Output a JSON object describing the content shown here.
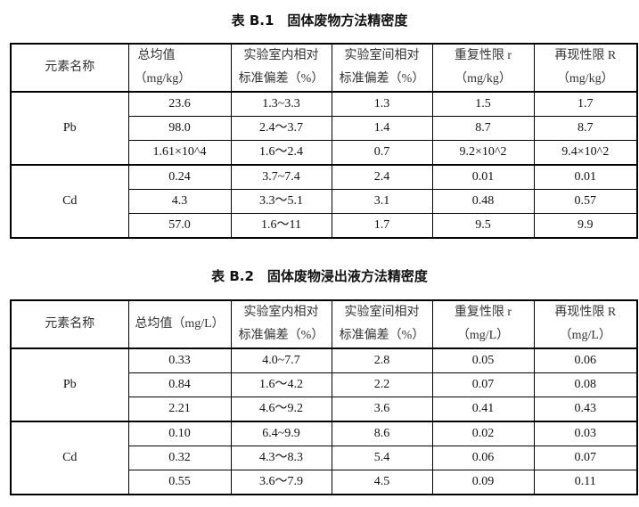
{
  "table1": {
    "title": "表 B.1　固体废物方法精密度",
    "headers": [
      [
        "元素名称"
      ],
      [
        "总均值",
        "（mg/kg）"
      ],
      [
        "实验室内相对",
        "标准偏差（%）"
      ],
      [
        "实验室间相对",
        "标准偏差（%）"
      ],
      [
        "重复性限 r",
        "（mg/kg）"
      ],
      [
        "再现性限 R",
        "（mg/kg）"
      ]
    ],
    "groups": [
      {
        "element": "Pb",
        "rows": [
          [
            "23.6",
            "1.3~3.3",
            "1.3",
            "1.5",
            "1.7"
          ],
          [
            "98.0",
            "2.4～3.7",
            "1.4",
            "8.7",
            "8.7"
          ],
          [
            "1.61×10^4",
            "1.6～2.4",
            "0.7",
            "9.2×10^2",
            "9.4×10^2"
          ]
        ]
      },
      {
        "element": "Cd",
        "rows": [
          [
            "0.24",
            "3.7~7.4",
            "2.4",
            "0.01",
            "0.01"
          ],
          [
            "4.3",
            "3.3～5.1",
            "3.1",
            "0.48",
            "0.57"
          ],
          [
            "57.0",
            "1.6～11",
            "1.7",
            "9.5",
            "9.9"
          ]
        ]
      }
    ]
  },
  "table2": {
    "title": "表 B.2　固体废物浸出液方法精密度",
    "headers": [
      [
        "元素名称"
      ],
      [
        "总均值（mg/L）"
      ],
      [
        "实验室内相对",
        "标准偏差（%）"
      ],
      [
        "实验室间相对",
        "标准偏差（%）"
      ],
      [
        "重复性限 r",
        "（mg/L）"
      ],
      [
        "再现性限 R",
        "（mg/L）"
      ]
    ],
    "groups": [
      {
        "element": "Pb",
        "rows": [
          [
            "0.33",
            "4.0~7.7",
            "2.8",
            "0.05",
            "0.06"
          ],
          [
            "0.84",
            "1.6～4.2",
            "2.2",
            "0.07",
            "0.08"
          ],
          [
            "2.21",
            "4.6～9.2",
            "3.6",
            "0.41",
            "0.43"
          ]
        ]
      },
      {
        "element": "Cd",
        "rows": [
          [
            "0.10",
            "6.4~9.9",
            "8.6",
            "0.02",
            "0.03"
          ],
          [
            "0.32",
            "4.3～8.3",
            "5.4",
            "0.06",
            "0.07"
          ],
          [
            "0.55",
            "3.6～7.9",
            "4.5",
            "0.09",
            "0.11"
          ]
        ]
      }
    ]
  }
}
